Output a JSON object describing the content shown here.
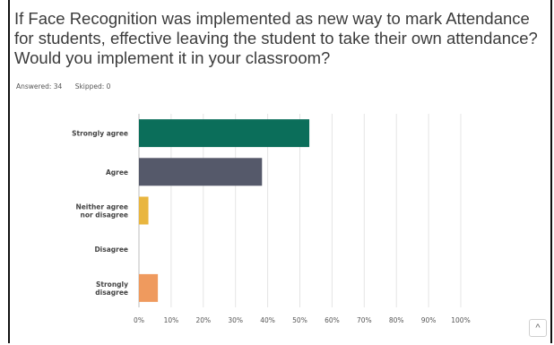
{
  "question": {
    "title": "If Face Recognition was implemented as new way to mark Attendance for students, effective leaving the student to take their own attendance? Would you implement it in your classroom?"
  },
  "stats": {
    "answered": "Answered: 34",
    "skipped": "Skipped: 0"
  },
  "scroll_top": {
    "icon": "chevron-up-icon",
    "glyph": "^"
  },
  "chart_data": {
    "type": "bar",
    "orientation": "horizontal",
    "categories": [
      "Strongly agree",
      "Agree",
      "Neither agree nor disagree",
      "Disagree",
      "Strongly disagree"
    ],
    "category_lines": [
      [
        "Strongly agree"
      ],
      [
        "Agree"
      ],
      [
        "Neither agree",
        "nor disagree"
      ],
      [
        "Disagree"
      ],
      [
        "Strongly",
        "disagree"
      ]
    ],
    "values": [
      52.94,
      38.24,
      2.94,
      0,
      5.88
    ],
    "colors": [
      "#0b6e5a",
      "#55596a",
      "#e9b63f",
      "#d04a5b",
      "#ef9a5e"
    ],
    "xlim": [
      0,
      100
    ],
    "xticks": [
      0,
      10,
      20,
      30,
      40,
      50,
      60,
      70,
      80,
      90,
      100
    ],
    "xtick_suffix": "%",
    "grid": true,
    "legend": "none"
  }
}
